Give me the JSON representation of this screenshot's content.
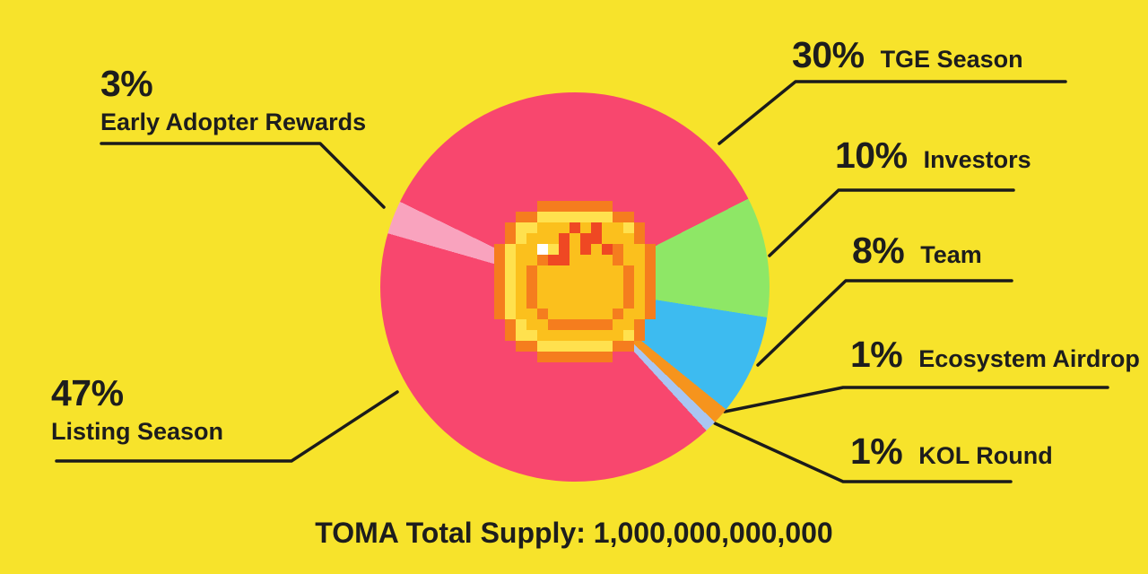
{
  "chart_data": {
    "type": "pie",
    "title": "TOMA Total Supply: 1,000,000,000,000",
    "unit": "%",
    "legend_position": "callout-labels-around-pie",
    "slices": [
      {
        "label": "TGE Season",
        "value": 30,
        "pct": "30%",
        "color": "#F8476E"
      },
      {
        "label": "Investors",
        "value": 10,
        "pct": "10%",
        "color": "#8EE766"
      },
      {
        "label": "Team",
        "value": 8,
        "pct": "8%",
        "color": "#3DBBF0"
      },
      {
        "label": "Ecosystem Airdrop",
        "value": 1,
        "pct": "1%",
        "color": "#F6941D"
      },
      {
        "label": "KOL Round",
        "value": 1,
        "pct": "1%",
        "color": "#A9C6F2"
      },
      {
        "label": "Listing Season",
        "value": 47,
        "pct": "47%",
        "color": "#F8476E"
      },
      {
        "label": "Early Adopter Rewards",
        "value": 3,
        "pct": "3%",
        "color": "#F9A3BE"
      }
    ]
  },
  "footer": {
    "label": "TOMA Total Supply: 1,000,000,000,000"
  },
  "colors": {
    "background": "#F7E32B",
    "line": "#1B1B1B",
    "text": "#1D1D1D",
    "pink": "#F8476E",
    "light_pink": "#F9A3BE",
    "green": "#8EE766",
    "blue": "#3DBBF0",
    "orange": "#F6941D",
    "periwinkle": "#A9C6F2",
    "coin_orange": "#F57D1E",
    "coin_red": "#EF4823",
    "coin_gold": "#FBC01D",
    "coin_light": "#FFE14E",
    "coin_white": "#FFFFFF"
  }
}
